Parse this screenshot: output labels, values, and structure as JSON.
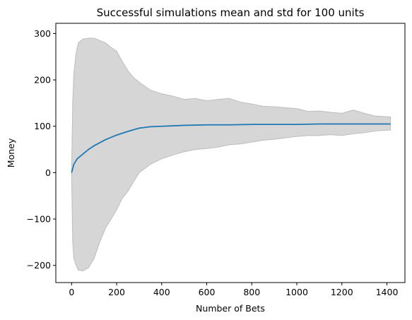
{
  "chart_data": {
    "type": "line",
    "title": "Successful simulations mean and std for 100 units",
    "xlabel": "Number of Bets",
    "ylabel": "Money",
    "xlim": [
      -70,
      1480
    ],
    "ylim": [
      -237,
      322
    ],
    "xticks": [
      0,
      200,
      400,
      600,
      800,
      1000,
      1200,
      1400
    ],
    "yticks": [
      -200,
      -100,
      0,
      100,
      200,
      300
    ],
    "xtick_labels": [
      "0",
      "200",
      "400",
      "600",
      "800",
      "1000",
      "1200",
      "1400"
    ],
    "ytick_labels": [
      "−200",
      "−100",
      "0",
      "100",
      "200",
      "300"
    ],
    "grid": false,
    "series": [
      {
        "kind": "line",
        "color": "#1f77b4",
        "x": [
          0,
          10,
          25,
          50,
          75,
          100,
          150,
          200,
          250,
          300,
          350,
          400,
          500,
          600,
          700,
          800,
          900,
          1000,
          1100,
          1200,
          1300,
          1416
        ],
        "y": [
          0,
          18,
          30,
          40,
          50,
          58,
          71,
          81,
          89,
          96,
          99,
          100,
          102,
          103,
          103,
          104,
          104,
          104,
          105,
          105,
          105,
          105
        ]
      },
      {
        "kind": "band",
        "color": "#d6d6d6",
        "x": [
          0,
          5,
          10,
          20,
          30,
          50,
          75,
          100,
          125,
          150,
          175,
          200,
          225,
          250,
          275,
          300,
          350,
          400,
          450,
          500,
          550,
          600,
          650,
          700,
          750,
          800,
          850,
          900,
          950,
          1000,
          1050,
          1100,
          1150,
          1200,
          1250,
          1300,
          1350,
          1416
        ],
        "upper": [
          0,
          150,
          215,
          258,
          280,
          288,
          290,
          290,
          285,
          280,
          270,
          262,
          240,
          220,
          205,
          195,
          178,
          170,
          165,
          158,
          160,
          155,
          158,
          160,
          152,
          148,
          143,
          142,
          140,
          138,
          132,
          133,
          130,
          128,
          135,
          128,
          122,
          120
        ],
        "lower": [
          0,
          -150,
          -185,
          -200,
          -210,
          -212,
          -205,
          -185,
          -150,
          -120,
          -100,
          -80,
          -55,
          -40,
          -20,
          0,
          18,
          30,
          38,
          45,
          50,
          52,
          55,
          60,
          62,
          66,
          70,
          72,
          75,
          78,
          80,
          80,
          82,
          80,
          84,
          86,
          90,
          92
        ]
      }
    ]
  }
}
